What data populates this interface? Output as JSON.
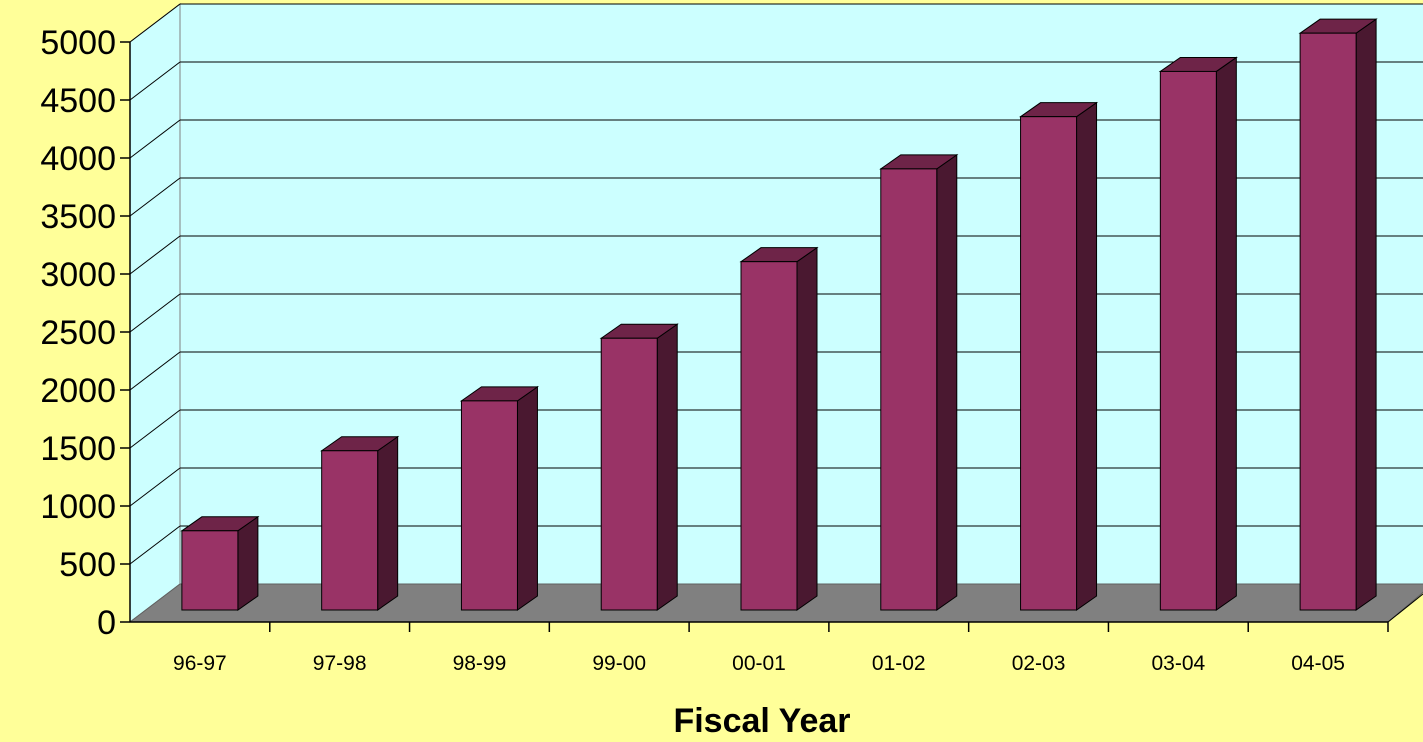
{
  "colors": {
    "background": "#ffff99",
    "back_wall": "#ccffff",
    "floor": "#808080",
    "bar_front": "#993366",
    "bar_top": "#6e2448",
    "bar_side": "#4a1830",
    "gridline": "#000000"
  },
  "chart_data": {
    "type": "bar",
    "style": "3d-column",
    "title": "",
    "xlabel": "Fiscal Year",
    "ylabel": "",
    "ylim": [
      0,
      5000
    ],
    "ytick_step": 500,
    "yticks": [
      "0",
      "500",
      "1000",
      "1500",
      "2000",
      "2500",
      "3000",
      "3500",
      "4000",
      "4500",
      "5000"
    ],
    "grid": true,
    "legend": "none",
    "categories": [
      "96-97",
      "97-98",
      "98-99",
      "99-00",
      "00-01",
      "01-02",
      "02-03",
      "03-04",
      "04-05"
    ],
    "values": [
      700,
      1390,
      1820,
      2360,
      3020,
      3820,
      4270,
      4660,
      4990
    ]
  }
}
